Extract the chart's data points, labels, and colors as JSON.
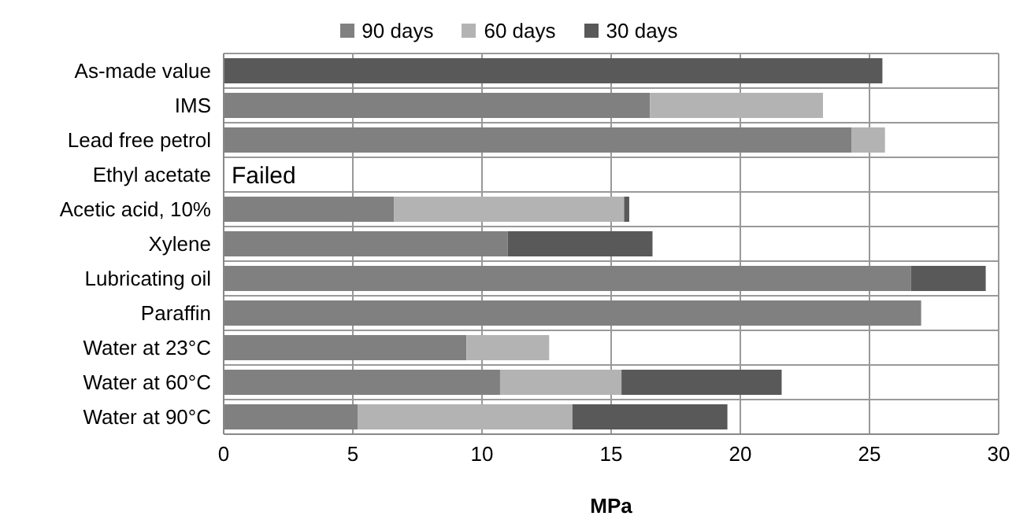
{
  "chart_data": {
    "type": "bar",
    "orientation": "horizontal",
    "stacked": true,
    "xlabel": "MPa",
    "categories": [
      "As-made value",
      "IMS",
      "Lead free petrol",
      "Ethyl acetate",
      "Acetic acid, 10%",
      "Xylene",
      "Lubricating oil",
      "Paraffin",
      "Water at 23°C",
      "Water at 60°C",
      "Water at 90°C"
    ],
    "series": [
      {
        "name": "90 days",
        "color": "#808080",
        "values": [
          0,
          16.5,
          24.3,
          null,
          6.6,
          11.0,
          26.6,
          27.0,
          9.4,
          10.7,
          5.2
        ]
      },
      {
        "name": "60 days",
        "color": "#b3b3b3",
        "values": [
          0,
          6.7,
          1.3,
          null,
          8.9,
          0,
          0,
          0,
          3.2,
          4.7,
          8.3
        ]
      },
      {
        "name": "30 days",
        "color": "#595959",
        "values": [
          25.5,
          0,
          0,
          null,
          0.2,
          5.6,
          2.9,
          0,
          0,
          6.2,
          6.0
        ]
      }
    ],
    "xlim": [
      0,
      30
    ],
    "xticks": [
      0,
      5,
      10,
      15,
      20,
      25,
      30
    ],
    "grid": true,
    "legend": "top",
    "annotations": [
      {
        "text": "Failed",
        "x": 0,
        "y": "Ethyl acetate"
      }
    ]
  }
}
